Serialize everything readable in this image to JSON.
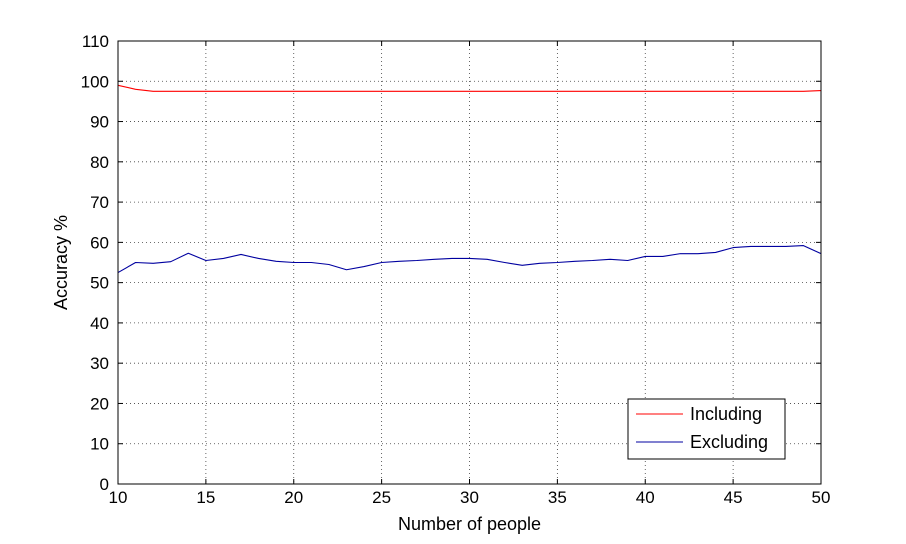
{
  "chart_data": {
    "type": "line",
    "title": "",
    "xlabel": "Number of people",
    "ylabel": "Accuracy %",
    "xlim": [
      10,
      50
    ],
    "ylim": [
      0,
      110
    ],
    "xticks": [
      10,
      15,
      20,
      25,
      30,
      35,
      40,
      45,
      50
    ],
    "yticks": [
      0,
      10,
      20,
      30,
      40,
      50,
      60,
      70,
      80,
      90,
      100,
      110
    ],
    "grid": true,
    "legend_position": "bottom-right",
    "x": [
      10,
      11,
      12,
      13,
      14,
      15,
      16,
      17,
      18,
      19,
      20,
      21,
      22,
      23,
      24,
      25,
      26,
      27,
      28,
      29,
      30,
      31,
      32,
      33,
      34,
      35,
      36,
      37,
      38,
      39,
      40,
      41,
      42,
      43,
      44,
      45,
      46,
      47,
      48,
      49,
      50
    ],
    "series": [
      {
        "name": "Including",
        "color": "#ff0000",
        "values": [
          99.0,
          98.0,
          97.5,
          97.5,
          97.5,
          97.5,
          97.5,
          97.5,
          97.5,
          97.5,
          97.5,
          97.5,
          97.5,
          97.5,
          97.5,
          97.5,
          97.5,
          97.5,
          97.5,
          97.5,
          97.5,
          97.5,
          97.5,
          97.5,
          97.5,
          97.5,
          97.5,
          97.5,
          97.5,
          97.5,
          97.5,
          97.5,
          97.5,
          97.5,
          97.5,
          97.5,
          97.5,
          97.5,
          97.5,
          97.5,
          97.7
        ]
      },
      {
        "name": "Excluding",
        "color": "#0000a0",
        "values": [
          52.5,
          55.0,
          54.8,
          55.2,
          57.3,
          55.5,
          56.0,
          57.0,
          56.0,
          55.3,
          55.0,
          55.0,
          54.5,
          53.2,
          54.0,
          55.0,
          55.3,
          55.5,
          55.8,
          56.0,
          56.0,
          55.8,
          55.0,
          54.3,
          54.8,
          55.0,
          55.3,
          55.5,
          55.8,
          55.5,
          56.5,
          56.5,
          57.2,
          57.2,
          57.5,
          58.7,
          59.0,
          59.0,
          59.0,
          59.2,
          57.2
        ]
      }
    ]
  }
}
